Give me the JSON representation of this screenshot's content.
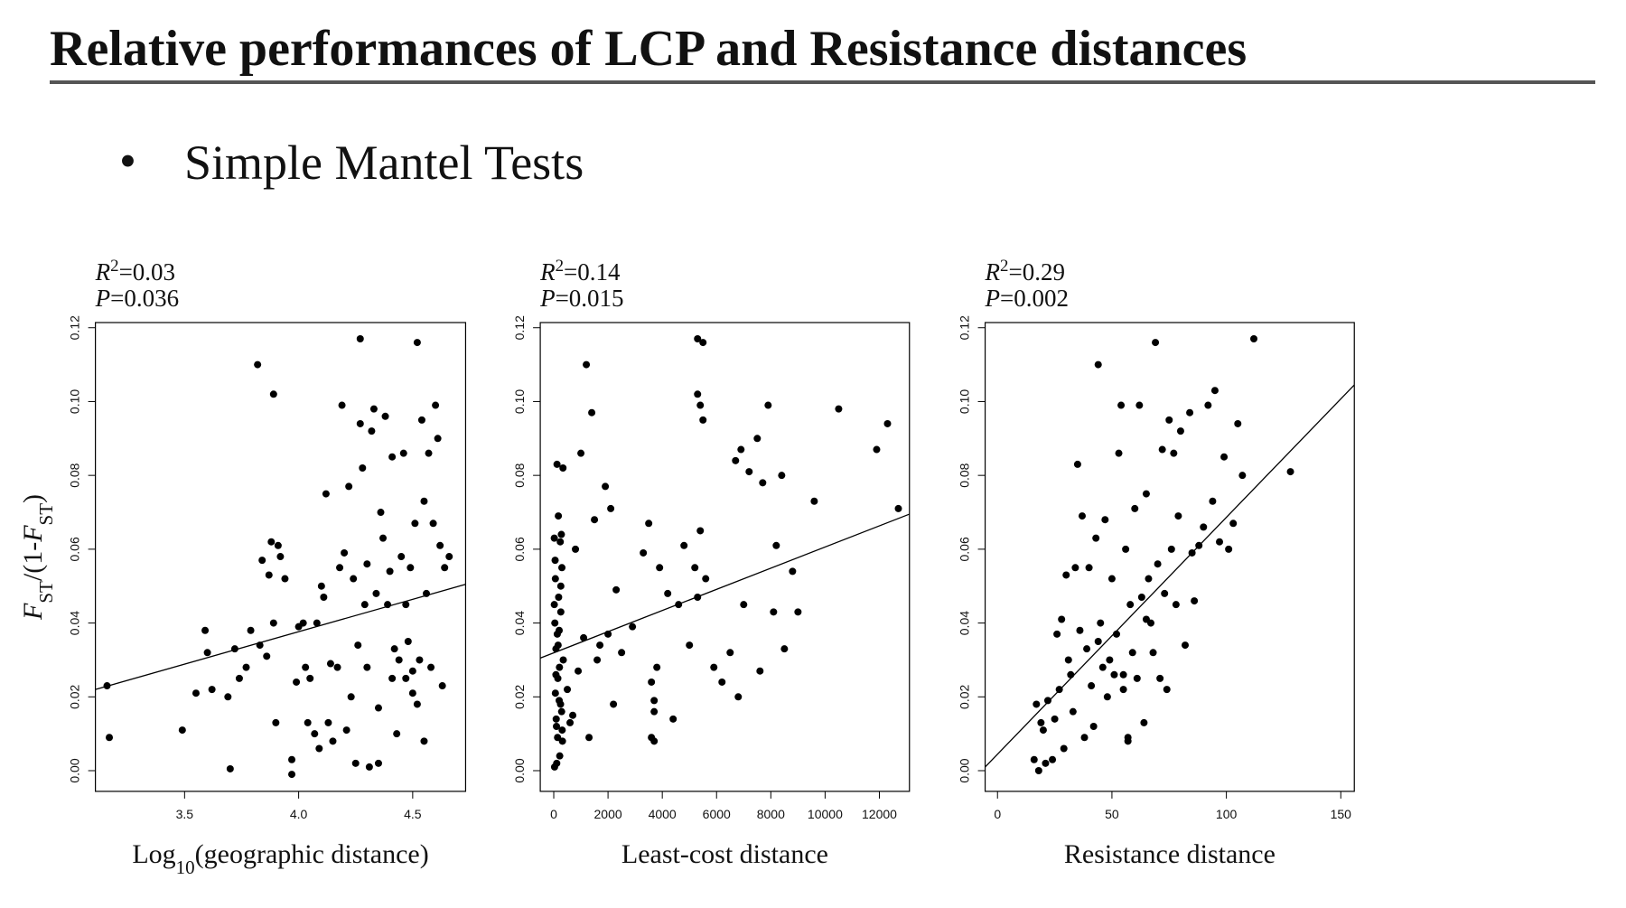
{
  "header": {
    "title": "Relative performances of LCP and Resistance distances"
  },
  "bullet": {
    "symbol": "•",
    "text": "Simple Mantel Tests"
  },
  "chart_data": [
    {
      "type": "scatter",
      "annotations": [
        [
          {
            "text": "R",
            "italic": true
          },
          {
            "text": "2",
            "sup": true
          },
          {
            "text": "=0.03"
          }
        ],
        [
          {
            "text": "P",
            "italic": true
          },
          {
            "text": "=0.036"
          }
        ]
      ],
      "xlabel": [
        {
          "text": "Log"
        },
        {
          "text": "10",
          "sub": true
        },
        {
          "text": "(geographic distance)"
        }
      ],
      "ylabel": [
        {
          "text": "F",
          "italic": true
        },
        {
          "text": "ST",
          "sub": true
        },
        {
          "text": "/(1-"
        },
        {
          "text": "F",
          "italic": true
        },
        {
          "text": "ST",
          "sub": true
        },
        {
          "text": ")"
        }
      ],
      "xlim": [
        3.109,
        4.732
      ],
      "ylim": [
        -0.0056,
        0.1214
      ],
      "xticks": [
        3.5,
        {
          "value": 4,
          "label": "4.0"
        },
        4.5
      ],
      "yticks": [
        {
          "value": 0,
          "label": "0.00"
        },
        0.02,
        0.04,
        0.06,
        0.08,
        {
          "value": 0.1,
          "label": "0.10"
        },
        0.12
      ],
      "color": "#000000",
      "x": [
        3.16,
        3.17,
        3.49,
        3.55,
        3.59,
        3.6,
        3.62,
        3.7,
        3.69,
        3.72,
        3.74,
        3.77,
        3.79,
        3.82,
        3.83,
        3.84,
        3.86,
        3.87,
        3.88,
        3.89,
        3.89,
        3.9,
        3.91,
        3.92,
        3.94,
        3.97,
        3.97,
        3.99,
        4.0,
        4.02,
        4.03,
        4.04,
        4.05,
        4.07,
        4.08,
        4.09,
        4.1,
        4.11,
        4.12,
        4.13,
        4.14,
        4.15,
        4.17,
        4.18,
        4.19,
        4.2,
        4.21,
        4.22,
        4.23,
        4.24,
        4.25,
        4.26,
        4.27,
        4.27,
        4.28,
        4.29,
        4.3,
        4.3,
        4.31,
        4.32,
        4.33,
        4.34,
        4.35,
        4.35,
        4.36,
        4.37,
        4.38,
        4.39,
        4.4,
        4.41,
        4.41,
        4.42,
        4.43,
        4.44,
        4.45,
        4.46,
        4.47,
        4.48,
        4.49,
        4.5,
        4.51,
        4.52,
        4.53,
        4.54,
        4.55,
        4.55,
        4.56,
        4.57,
        4.58,
        4.59,
        4.6,
        4.61,
        4.62,
        4.63,
        4.64,
        4.66,
        4.5,
        4.47,
        4.52
      ],
      "values": [
        0.023,
        0.009,
        0.011,
        0.021,
        0.038,
        0.032,
        0.022,
        0.0005,
        0.02,
        0.033,
        0.025,
        0.028,
        0.038,
        0.11,
        0.034,
        0.057,
        0.031,
        0.053,
        0.062,
        0.102,
        0.04,
        0.013,
        0.061,
        0.058,
        0.052,
        0.003,
        -0.001,
        0.024,
        0.039,
        0.04,
        0.028,
        0.013,
        0.025,
        0.01,
        0.04,
        0.006,
        0.05,
        0.047,
        0.075,
        0.013,
        0.029,
        0.008,
        0.028,
        0.055,
        0.099,
        0.059,
        0.011,
        0.077,
        0.02,
        0.052,
        0.002,
        0.034,
        0.117,
        0.094,
        0.082,
        0.045,
        0.056,
        0.028,
        0.001,
        0.092,
        0.098,
        0.048,
        0.017,
        0.002,
        0.07,
        0.063,
        0.096,
        0.045,
        0.054,
        0.085,
        0.025,
        0.033,
        0.01,
        0.03,
        0.058,
        0.086,
        0.045,
        0.035,
        0.055,
        0.021,
        0.067,
        0.116,
        0.03,
        0.095,
        0.008,
        0.073,
        0.048,
        0.086,
        0.028,
        0.067,
        0.099,
        0.09,
        0.061,
        0.023,
        0.055,
        0.058,
        0.027,
        0.025,
        0.018
      ],
      "trend_line": {
        "x": [
          3.109,
          4.732
        ],
        "values": [
          0.022,
          0.0505
        ]
      }
    },
    {
      "type": "scatter",
      "annotations": [
        [
          {
            "text": "R",
            "italic": true
          },
          {
            "text": "2",
            "sup": true
          },
          {
            "text": "=0.14"
          }
        ],
        [
          {
            "text": "P",
            "italic": true
          },
          {
            "text": "=0.015"
          }
        ]
      ],
      "xlabel": [
        {
          "text": "Least-cost distance"
        }
      ],
      "xlim": [
        -497,
        13108
      ],
      "ylim": [
        -0.0056,
        0.1214
      ],
      "xticks": [
        0,
        2000,
        4000,
        6000,
        8000,
        10000,
        12000
      ],
      "yticks": [
        {
          "value": 0,
          "label": "0.00"
        },
        0.02,
        0.04,
        0.06,
        0.08,
        {
          "value": 0.1,
          "label": "0.10"
        },
        0.12
      ],
      "color": "#000000",
      "x": [
        20,
        40,
        60,
        80,
        100,
        120,
        150,
        180,
        200,
        220,
        250,
        280,
        300,
        320,
        350,
        30,
        60,
        90,
        130,
        170,
        210,
        260,
        310,
        50,
        110,
        160,
        240,
        290,
        340,
        20,
        80,
        140,
        200,
        260,
        500,
        600,
        700,
        800,
        900,
        1000,
        1100,
        1200,
        1300,
        1400,
        1500,
        1600,
        1700,
        1900,
        2000,
        2100,
        2200,
        2300,
        2500,
        2900,
        3300,
        3500,
        3600,
        3700,
        3800,
        3900,
        3600,
        3700,
        4200,
        4400,
        4600,
        4800,
        5000,
        5200,
        5300,
        5400,
        5500,
        5600,
        5400,
        5300,
        5900,
        6200,
        6500,
        6700,
        6800,
        6900,
        7000,
        7200,
        7500,
        7600,
        7700,
        7900,
        8100,
        8200,
        8400,
        8500,
        8800,
        9000,
        9600,
        10500,
        11900,
        12300,
        12700,
        5300,
        5500,
        3700
      ],
      "values": [
        0.063,
        0.04,
        0.052,
        0.033,
        0.012,
        0.083,
        0.025,
        0.047,
        0.038,
        0.004,
        0.018,
        0.064,
        0.055,
        0.008,
        0.03,
        0.001,
        0.021,
        0.014,
        0.037,
        0.069,
        0.028,
        0.043,
        0.011,
        0.057,
        0.002,
        0.034,
        0.062,
        0.016,
        0.082,
        0.045,
        0.026,
        0.009,
        0.019,
        0.05,
        0.022,
        0.013,
        0.015,
        0.06,
        0.027,
        0.086,
        0.036,
        0.11,
        0.009,
        0.097,
        0.068,
        0.03,
        0.034,
        0.077,
        0.037,
        0.071,
        0.018,
        0.049,
        0.032,
        0.039,
        0.059,
        0.067,
        0.024,
        0.016,
        0.028,
        0.055,
        0.009,
        0.008,
        0.048,
        0.014,
        0.045,
        0.061,
        0.034,
        0.055,
        0.117,
        0.099,
        0.116,
        0.052,
        0.065,
        0.047,
        0.028,
        0.024,
        0.032,
        0.084,
        0.02,
        0.087,
        0.045,
        0.081,
        0.09,
        0.027,
        0.078,
        0.099,
        0.043,
        0.061,
        0.08,
        0.033,
        0.054,
        0.043,
        0.073,
        0.098,
        0.087,
        0.094,
        0.071,
        0.102,
        0.095,
        0.019
      ],
      "trend_line": {
        "x": [
          -497,
          13108
        ],
        "values": [
          0.0305,
          0.0695
        ]
      }
    },
    {
      "type": "scatter",
      "annotations": [
        [
          {
            "text": "R",
            "italic": true
          },
          {
            "text": "2",
            "sup": true
          },
          {
            "text": "=0.29"
          }
        ],
        [
          {
            "text": "P",
            "italic": true
          },
          {
            "text": "=0.002"
          }
        ]
      ],
      "xlabel": [
        {
          "text": "Resistance distance"
        }
      ],
      "xlim": [
        -5.4,
        155.9
      ],
      "ylim": [
        -0.0056,
        0.1214
      ],
      "xticks": [
        0,
        50,
        100,
        150
      ],
      "yticks": [
        {
          "value": 0,
          "label": "0.00"
        },
        0.02,
        0.04,
        0.06,
        0.08,
        {
          "value": 0.1,
          "label": "0.10"
        },
        0.12
      ],
      "color": "#000000",
      "x": [
        16,
        17,
        18,
        19,
        20,
        21,
        22,
        24,
        25,
        26,
        27,
        28,
        29,
        30,
        31,
        32,
        33,
        34,
        35,
        36,
        37,
        38,
        39,
        40,
        41,
        42,
        43,
        44,
        45,
        46,
        47,
        48,
        49,
        50,
        51,
        52,
        53,
        54,
        55,
        56,
        57,
        58,
        59,
        60,
        61,
        62,
        63,
        64,
        65,
        66,
        67,
        68,
        69,
        70,
        71,
        72,
        73,
        74,
        75,
        76,
        77,
        78,
        79,
        80,
        82,
        84,
        85,
        86,
        88,
        90,
        92,
        94,
        95,
        97,
        99,
        101,
        103,
        105,
        107,
        112,
        128,
        44,
        65,
        55,
        57
      ],
      "values": [
        0.003,
        0.018,
        0.0,
        0.013,
        0.011,
        0.002,
        0.019,
        0.003,
        0.014,
        0.037,
        0.022,
        0.041,
        0.006,
        0.053,
        0.03,
        0.026,
        0.016,
        0.055,
        0.083,
        0.038,
        0.069,
        0.009,
        0.033,
        0.055,
        0.023,
        0.012,
        0.063,
        0.035,
        0.04,
        0.028,
        0.068,
        0.02,
        0.03,
        0.052,
        0.026,
        0.037,
        0.086,
        0.099,
        0.022,
        0.06,
        0.009,
        0.045,
        0.032,
        0.071,
        0.025,
        0.099,
        0.047,
        0.013,
        0.075,
        0.052,
        0.04,
        0.032,
        0.116,
        0.056,
        0.025,
        0.087,
        0.048,
        0.022,
        0.095,
        0.06,
        0.086,
        0.045,
        0.069,
        0.092,
        0.034,
        0.097,
        0.059,
        0.046,
        0.061,
        0.066,
        0.099,
        0.073,
        0.103,
        0.062,
        0.085,
        0.06,
        0.067,
        0.094,
        0.08,
        0.117,
        0.081,
        0.11,
        0.041,
        0.026,
        0.008
      ],
      "trend_line": {
        "x": [
          -5.4,
          155.9
        ],
        "values": [
          0.001,
          0.1045
        ]
      }
    }
  ]
}
